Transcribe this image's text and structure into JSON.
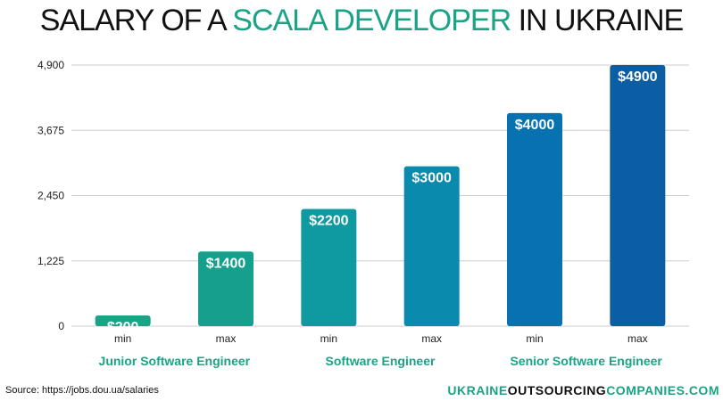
{
  "title": {
    "part1": "SALARY OF A ",
    "highlight": "SCALA DEVELOPER",
    "part2": " IN UKRAINE"
  },
  "source": "Source: https://jobs.dou.ua/salaries",
  "brand": {
    "part1": "UKRAINE",
    "part2": "OUTSOURCING",
    "part3": "COMPANIES.COM"
  },
  "colors": {
    "accent": "#1aa384",
    "bar_start": "#1aa384",
    "bar_end": "#0b57a0"
  },
  "chart_data": {
    "type": "bar",
    "categories": [
      "min",
      "max",
      "min",
      "max",
      "min",
      "max"
    ],
    "values": [
      200,
      1400,
      2200,
      3000,
      4000,
      4900
    ],
    "data_labels": [
      "$200",
      "$1400",
      "$2200",
      "$3000",
      "$4000",
      "$4900"
    ],
    "groups": [
      "Junior Software Engineer",
      "Software Engineer",
      "Senior Software Engineer"
    ],
    "yticks": [
      0,
      1225,
      2450,
      3675,
      4900
    ],
    "ytick_labels": [
      "0",
      "1,225",
      "2,450",
      "3,675",
      "4,900"
    ],
    "ylim": [
      0,
      4900
    ],
    "grid": true,
    "bar_colors": [
      "#1aa384",
      "#14a08c",
      "#0e9aa0",
      "#0a8aad",
      "#0872b0",
      "#0b5ea3"
    ]
  }
}
